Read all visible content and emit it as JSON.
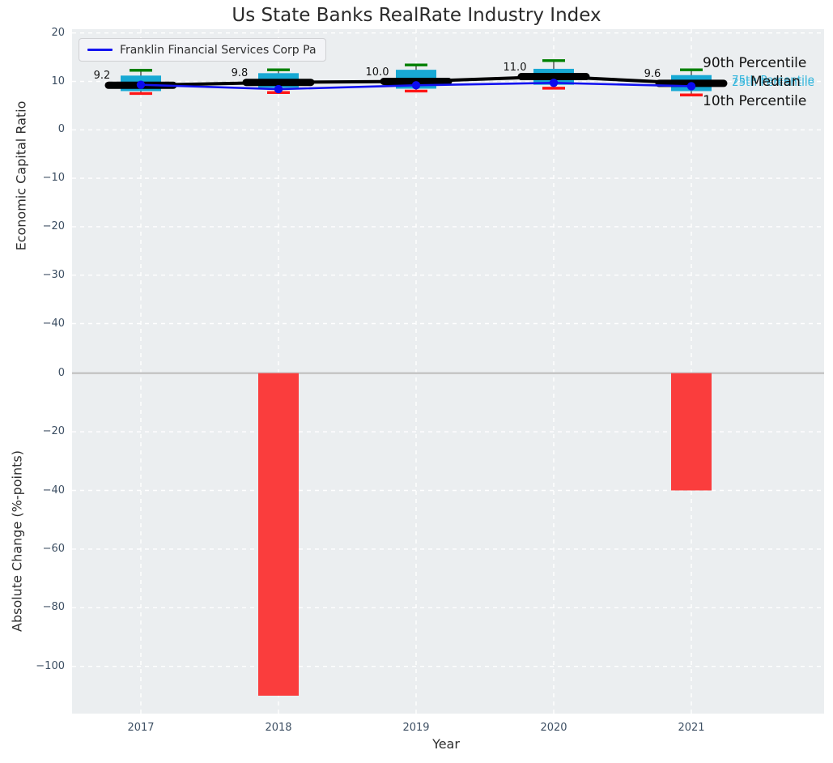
{
  "title": "Us State Banks RealRate Industry Index",
  "legend": {
    "series_label": "Franklin Financial Services Corp Pa"
  },
  "axes": {
    "top": {
      "ylabel": "Economic Capital Ratio",
      "tick_labels": [
        "20",
        "10",
        "0",
        "−10",
        "−20",
        "−30",
        "−40"
      ],
      "tick_values": [
        20,
        10,
        0,
        -10,
        -20,
        -30,
        -40
      ]
    },
    "bottom": {
      "ylabel": "Absolute Change (%-points)",
      "tick_labels": [
        "0",
        "−20",
        "−40",
        "−60",
        "−80",
        "−100"
      ],
      "tick_values": [
        0,
        -20,
        -40,
        -60,
        -80,
        -100
      ]
    },
    "x": {
      "label": "Year",
      "tick_labels": [
        "2017",
        "2018",
        "2019",
        "2020",
        "2021"
      ]
    }
  },
  "annotations": {
    "p90": "90th Percentile",
    "p75": "75th Percentile",
    "median_label": "Median",
    "p25": "25th Percentile",
    "p10": "10th Percentile"
  },
  "colors": {
    "plot_bg": "#ebeef0",
    "grid": "#ffffff",
    "box_fill": "#18a9d4",
    "whisker": "#3f3f3f",
    "p90_cap": "#008000",
    "p10_cap": "#fe1616",
    "median_line": "#000000",
    "company_line": "#1313f0",
    "company_dot": "#0b0bf0",
    "bar_negative": "#fa3d3d",
    "zero_line": "#c3c3c3",
    "tick_text": "#3d4f63",
    "annotation_cyan": "#36b6dc",
    "value_label_text": "#141414"
  },
  "chart_data": [
    {
      "type": "boxplot",
      "title": "Us State Banks RealRate Industry Index",
      "xlabel": "Year",
      "ylabel": "Economic Capital Ratio",
      "x": [
        2017,
        2018,
        2019,
        2020,
        2021
      ],
      "ylim": [
        -45,
        21
      ],
      "grid": true,
      "legend_position": "upper left",
      "series": [
        {
          "name": "90th Percentile",
          "values": [
            12.3,
            12.4,
            13.4,
            14.3,
            12.4
          ]
        },
        {
          "name": "75th Percentile",
          "values": [
            11.2,
            11.7,
            12.4,
            12.6,
            11.3
          ]
        },
        {
          "name": "Median",
          "values": [
            9.2,
            9.8,
            10.0,
            11.0,
            9.6
          ]
        },
        {
          "name": "25th Percentile",
          "values": [
            8.0,
            8.7,
            8.5,
            9.3,
            8.0
          ]
        },
        {
          "name": "10th Percentile",
          "values": [
            7.5,
            7.7,
            8.0,
            8.6,
            7.2
          ]
        },
        {
          "name": "Franklin Financial Services Corp Pa",
          "values": [
            9.3,
            8.4,
            9.2,
            9.7,
            9.0
          ]
        }
      ],
      "median_value_labels": [
        "9.2",
        "9.8",
        "10.0",
        "11.0",
        "9.6"
      ]
    },
    {
      "type": "bar",
      "ylabel": "Absolute Change (%-points)",
      "x": [
        2017,
        2018,
        2019,
        2020,
        2021
      ],
      "ylim": [
        -116,
        9
      ],
      "grid": true,
      "values": [
        null,
        -110,
        null,
        null,
        -40
      ]
    }
  ]
}
